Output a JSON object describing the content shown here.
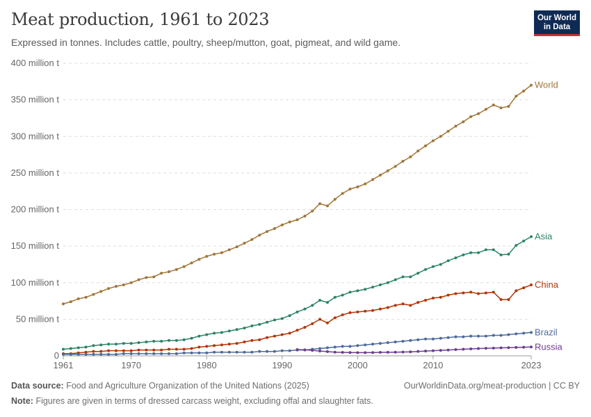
{
  "header": {
    "title": "Meat production, 1961 to 2023",
    "subtitle": "Expressed in tonnes. Includes cattle, poultry, sheep/mutton, goat, pigmeat, and wild game."
  },
  "logo": {
    "line1": "Our World",
    "line2": "in Data"
  },
  "footer": {
    "source_label": "Data source:",
    "source_text": "Food and Agriculture Organization of the United Nations (2025)",
    "url": "OurWorldinData.org/meat-production | CC BY",
    "note_label": "Note:",
    "note_text": "Figures are given in terms of dressed carcass weight, excluding offal and slaughter fats."
  },
  "chart_data": {
    "type": "line",
    "title": "Meat production, 1961 to 2023",
    "xlabel": "",
    "ylabel": "",
    "xlim": [
      1961,
      2023
    ],
    "ylim": [
      0,
      400
    ],
    "y_unit": "million t",
    "y_ticks": [
      0,
      50,
      100,
      150,
      200,
      250,
      300,
      350,
      400
    ],
    "y_tick_labels": [
      "0",
      "50 million t",
      "100 million t",
      "150 million t",
      "200 million t",
      "250 million t",
      "300 million t",
      "350 million t",
      "400 million t"
    ],
    "x_ticks": [
      1961,
      1970,
      1980,
      1990,
      2000,
      2010,
      2023
    ],
    "x_tick_labels": [
      "1961",
      "1970",
      "1980",
      "1990",
      "2000",
      "2010",
      "2023"
    ],
    "grid": true,
    "series": [
      {
        "name": "World",
        "color": "#a0763a",
        "values": [
          71,
          74,
          78,
          80,
          84,
          88,
          92,
          95,
          97,
          100,
          104,
          107,
          108,
          113,
          115,
          118,
          122,
          127,
          132,
          136,
          139,
          141,
          145,
          149,
          154,
          159,
          165,
          170,
          174,
          179,
          183,
          186,
          191,
          198,
          208,
          205,
          214,
          222,
          228,
          231,
          235,
          241,
          247,
          253,
          259,
          266,
          272,
          280,
          287,
          294,
          300,
          307,
          314,
          320,
          327,
          331,
          337,
          343,
          339,
          341,
          355,
          362,
          370
        ]
      },
      {
        "name": "Asia",
        "color": "#2c8465",
        "values": [
          9,
          10,
          11,
          12,
          14,
          15,
          16,
          16,
          17,
          17,
          18,
          19,
          20,
          20,
          21,
          21,
          22,
          24,
          27,
          29,
          31,
          32,
          34,
          36,
          38,
          41,
          43,
          46,
          49,
          51,
          55,
          60,
          64,
          69,
          76,
          73,
          80,
          83,
          87,
          89,
          91,
          94,
          97,
          100,
          104,
          108,
          108,
          113,
          118,
          122,
          125,
          130,
          134,
          138,
          141,
          141,
          145,
          145,
          138,
          139,
          151,
          157,
          163
        ]
      },
      {
        "name": "China",
        "color": "#b13507",
        "values": [
          3,
          3,
          4,
          5,
          6,
          6,
          7,
          7,
          7,
          7,
          8,
          8,
          8,
          8,
          9,
          9,
          9,
          10,
          12,
          13,
          14,
          15,
          16,
          17,
          19,
          21,
          22,
          25,
          27,
          29,
          31,
          35,
          39,
          44,
          50,
          45,
          52,
          56,
          59,
          60,
          61,
          62,
          64,
          66,
          69,
          71,
          69,
          73,
          76,
          79,
          80,
          83,
          85,
          86,
          87,
          85,
          86,
          87,
          77,
          77,
          89,
          93,
          97
        ]
      },
      {
        "name": "Brazil",
        "color": "#4c6a9c",
        "values": [
          2,
          2,
          2,
          2,
          2,
          2,
          2,
          2,
          3,
          3,
          3,
          3,
          3,
          3,
          3,
          3,
          4,
          4,
          4,
          4,
          5,
          5,
          5,
          5,
          5,
          5,
          6,
          6,
          6,
          7,
          7,
          8,
          8,
          9,
          10,
          11,
          12,
          13,
          13,
          14,
          15,
          16,
          17,
          18,
          19,
          20,
          21,
          22,
          23,
          23,
          24,
          25,
          26,
          26,
          27,
          27,
          27,
          28,
          28,
          29,
          30,
          31,
          32
        ]
      },
      {
        "name": "Russia",
        "color": "#6d3e91",
        "values": [
          null,
          null,
          null,
          null,
          null,
          null,
          null,
          null,
          null,
          null,
          null,
          null,
          null,
          null,
          null,
          null,
          null,
          null,
          null,
          null,
          null,
          null,
          null,
          null,
          null,
          null,
          null,
          null,
          null,
          null,
          null,
          8.5,
          8.2,
          7.5,
          6.5,
          5.8,
          5,
          4.7,
          4.5,
          4.4,
          4.4,
          4.5,
          4.7,
          4.9,
          5,
          5.2,
          5.5,
          6,
          6.5,
          7,
          7.5,
          8,
          8.5,
          9,
          9.5,
          10,
          10.3,
          10.6,
          10.9,
          11.2,
          11.5,
          11.8,
          12.1
        ]
      }
    ]
  }
}
